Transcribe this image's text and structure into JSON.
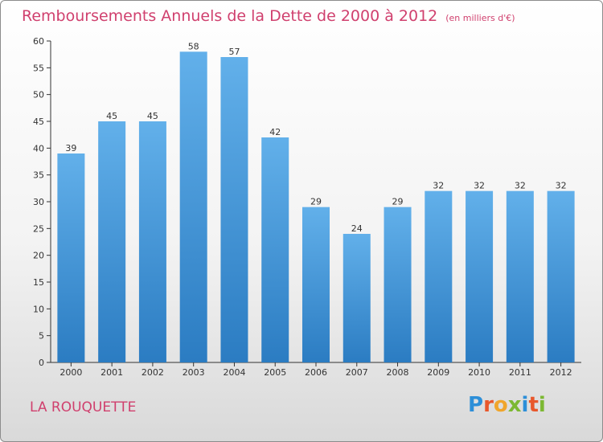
{
  "chart_data": {
    "type": "bar",
    "title": "Remboursements Annuels de la Dette de 2000 à 2012",
    "unit_note": "(en milliers d'€)",
    "categories": [
      "2000",
      "2001",
      "2002",
      "2003",
      "2004",
      "2005",
      "2006",
      "2007",
      "2008",
      "2009",
      "2010",
      "2011",
      "2012"
    ],
    "values": [
      39,
      45,
      45,
      58,
      57,
      42,
      29,
      24,
      29,
      32,
      32,
      32,
      32
    ],
    "ylim": [
      0,
      60
    ],
    "yticks": [
      0,
      5,
      10,
      15,
      20,
      25,
      30,
      35,
      40,
      45,
      50,
      55,
      60
    ],
    "grid": false,
    "bar_color": "#3a8fd6"
  },
  "place": "LA ROUQUETTE",
  "logo": {
    "text": "Proxiti",
    "letters": [
      {
        "ch": "P",
        "color": "#2d8fd8"
      },
      {
        "ch": "r",
        "color": "#e8572b"
      },
      {
        "ch": "o",
        "color": "#f0a52b"
      },
      {
        "ch": "x",
        "color": "#7cb832"
      },
      {
        "ch": "i",
        "color": "#2d8fd8"
      },
      {
        "ch": "t",
        "color": "#e8572b"
      },
      {
        "ch": "i",
        "color": "#7cb832"
      }
    ]
  }
}
